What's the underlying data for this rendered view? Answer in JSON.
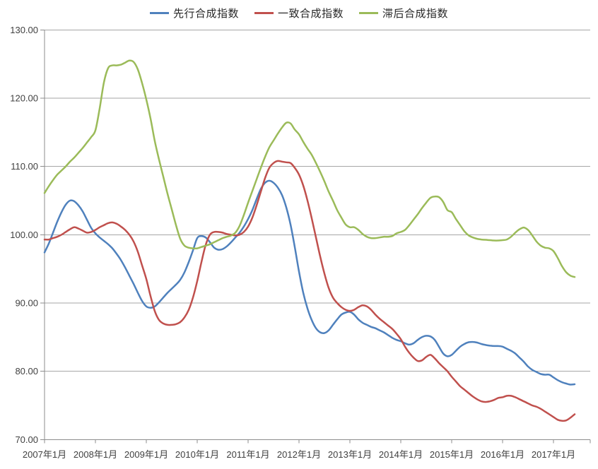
{
  "chart": {
    "background": "#FFFFFF",
    "grid_color": "#A6A6A6",
    "axis_color": "#8C8C8C",
    "label_color": "#404040",
    "legend_text_color": "#262626",
    "legend": [
      {
        "label": "先行合成指数",
        "color": "#4F81BD"
      },
      {
        "label": "一致合成指数",
        "color": "#C0504D"
      },
      {
        "label": "滞后合成指数",
        "color": "#9BBB59"
      }
    ]
  },
  "chart_data": {
    "type": "line",
    "title": "",
    "xlabel": "",
    "ylabel": "",
    "grid": "horizontal",
    "legend_position": "top-center",
    "x_frequency": "monthly",
    "x_start": "2007年1月",
    "x_end": "2017年6月",
    "x_tick_labels": [
      "2007年1月",
      "2008年1月",
      "2009年1月",
      "2010年1月",
      "2011年1月",
      "2012年1月",
      "2013年1月",
      "2014年1月",
      "2015年1月",
      "2016年1月",
      "2017年1月"
    ],
    "y_ticks": [
      70,
      80,
      90,
      100,
      110,
      120,
      130
    ],
    "y_tick_labels": [
      "70.00",
      "80.00",
      "90.00",
      "100.00",
      "110.00",
      "120.00",
      "130.00"
    ],
    "ylim": [
      70,
      130
    ],
    "series": [
      {
        "name": "先行合成指数",
        "color": "#4F81BD",
        "values": [
          97.4,
          98.7,
          100.3,
          101.9,
          103.3,
          104.4,
          105.0,
          104.9,
          104.3,
          103.4,
          102.2,
          101.0,
          100.2,
          99.6,
          99.1,
          98.6,
          98.0,
          97.2,
          96.3,
          95.2,
          94.0,
          92.8,
          91.5,
          90.3,
          89.5,
          89.3,
          89.5,
          90.1,
          90.8,
          91.5,
          92.1,
          92.7,
          93.4,
          94.5,
          96.0,
          97.7,
          99.5,
          99.8,
          99.6,
          98.9,
          98.1,
          97.8,
          97.9,
          98.3,
          98.9,
          99.6,
          100.3,
          101.2,
          102.3,
          103.6,
          105.2,
          106.7,
          107.6,
          107.9,
          107.6,
          106.9,
          105.8,
          104.0,
          101.5,
          98.2,
          94.6,
          91.5,
          89.2,
          87.5,
          86.3,
          85.7,
          85.6,
          86.0,
          86.8,
          87.6,
          88.3,
          88.6,
          88.7,
          88.3,
          87.6,
          87.1,
          86.8,
          86.5,
          86.3,
          86.0,
          85.7,
          85.3,
          84.9,
          84.6,
          84.4,
          84.1,
          83.9,
          84.1,
          84.6,
          85.0,
          85.2,
          85.1,
          84.6,
          83.6,
          82.6,
          82.2,
          82.4,
          83.0,
          83.6,
          84.0,
          84.25,
          84.3,
          84.2,
          84.0,
          83.85,
          83.75,
          83.7,
          83.7,
          83.6,
          83.3,
          83.0,
          82.6,
          82.0,
          81.4,
          80.7,
          80.2,
          79.9,
          79.6,
          79.5,
          79.5,
          79.1,
          78.7,
          78.4,
          78.2,
          78.05,
          78.1
        ]
      },
      {
        "name": "一致合成指数",
        "color": "#C0504D",
        "values": [
          99.3,
          99.3,
          99.5,
          99.7,
          100.0,
          100.4,
          100.8,
          101.1,
          100.9,
          100.6,
          100.3,
          100.4,
          100.7,
          101.1,
          101.4,
          101.7,
          101.8,
          101.6,
          101.2,
          100.7,
          100.0,
          99.0,
          97.5,
          95.5,
          93.5,
          91.0,
          88.8,
          87.5,
          87.0,
          86.8,
          86.8,
          86.9,
          87.2,
          87.9,
          89.0,
          90.8,
          93.2,
          96.0,
          98.5,
          100.0,
          100.4,
          100.4,
          100.3,
          100.1,
          100.0,
          99.9,
          100.0,
          100.4,
          101.2,
          102.5,
          104.3,
          106.3,
          108.3,
          109.8,
          110.5,
          110.8,
          110.7,
          110.6,
          110.5,
          109.8,
          108.8,
          107.2,
          105.0,
          102.4,
          99.6,
          96.8,
          94.3,
          92.2,
          90.8,
          90.0,
          89.4,
          89.0,
          88.85,
          89.0,
          89.4,
          89.65,
          89.5,
          89.0,
          88.3,
          87.7,
          87.2,
          86.7,
          86.2,
          85.5,
          84.7,
          83.6,
          82.7,
          82.0,
          81.5,
          81.6,
          82.1,
          82.4,
          81.9,
          81.2,
          80.6,
          80.0,
          79.2,
          78.5,
          77.8,
          77.3,
          76.8,
          76.3,
          75.9,
          75.6,
          75.5,
          75.6,
          75.8,
          76.1,
          76.2,
          76.4,
          76.4,
          76.2,
          75.9,
          75.6,
          75.3,
          75.0,
          74.8,
          74.5,
          74.1,
          73.7,
          73.3,
          72.9,
          72.75,
          72.8,
          73.2,
          73.7
        ]
      },
      {
        "name": "滞后合成指数",
        "color": "#9BBB59",
        "values": [
          106.1,
          107.1,
          108.0,
          108.8,
          109.4,
          110.0,
          110.7,
          111.3,
          112.0,
          112.7,
          113.5,
          114.3,
          115.3,
          118.5,
          122.3,
          124.4,
          124.8,
          124.8,
          124.9,
          125.2,
          125.5,
          125.3,
          124.2,
          122.2,
          119.8,
          117.0,
          113.7,
          111.0,
          108.5,
          106.0,
          103.7,
          101.4,
          99.4,
          98.4,
          98.1,
          98.0,
          98.0,
          98.2,
          98.4,
          98.6,
          98.9,
          99.2,
          99.5,
          99.7,
          99.9,
          100.3,
          101.3,
          102.9,
          104.7,
          106.4,
          108.1,
          109.8,
          111.4,
          112.8,
          113.8,
          114.8,
          115.7,
          116.4,
          116.3,
          115.4,
          114.7,
          113.6,
          112.6,
          111.7,
          110.5,
          109.2,
          107.8,
          106.3,
          105.0,
          103.6,
          102.5,
          101.5,
          101.1,
          101.1,
          100.7,
          100.1,
          99.7,
          99.5,
          99.5,
          99.6,
          99.7,
          99.7,
          99.8,
          100.2,
          100.4,
          100.7,
          101.4,
          102.2,
          103.0,
          103.9,
          104.7,
          105.4,
          105.6,
          105.5,
          104.8,
          103.6,
          103.3,
          102.3,
          101.4,
          100.5,
          99.9,
          99.6,
          99.4,
          99.3,
          99.25,
          99.2,
          99.15,
          99.15,
          99.2,
          99.3,
          99.7,
          100.3,
          100.8,
          101.05,
          100.7,
          99.9,
          99.0,
          98.4,
          98.1,
          98.0,
          97.6,
          96.6,
          95.4,
          94.5,
          94.0,
          93.8
        ]
      }
    ]
  }
}
